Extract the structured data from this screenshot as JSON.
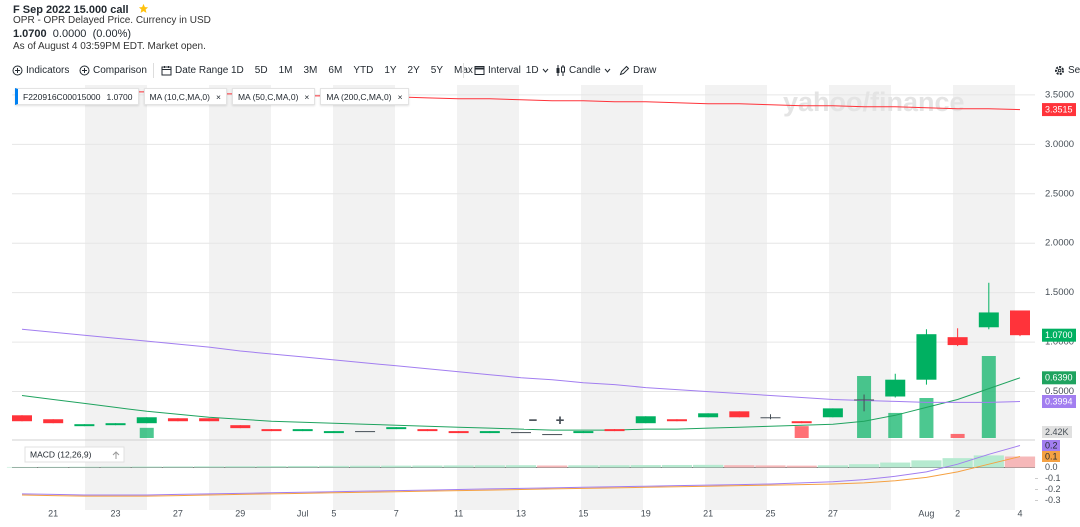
{
  "header": {
    "title": "F Sep 2022 15.000 call",
    "subtitle": "OPR - OPR Delayed Price. Currency in USD",
    "price": "1.0700",
    "change": "0.0000",
    "change_pct": "(0.00%)",
    "as_of": "As of August 4 03:59PM EDT. Market open."
  },
  "toolbar": {
    "indicators": "Indicators",
    "comparison": "Comparison",
    "date_range": "Date Range",
    "ranges": [
      "1D",
      "5D",
      "1M",
      "3M",
      "6M",
      "YTD",
      "1Y",
      "2Y",
      "5Y",
      "Max"
    ],
    "interval": "Interval",
    "interval_value": "1D",
    "chart_style": "Candle",
    "draw": "Draw",
    "settings": "Set"
  },
  "watermark": "yahoo/finance",
  "zoom_out": "−",
  "zoom_in": "+",
  "close_icon": "×",
  "chart_data": [
    {
      "type": "candlestick",
      "categories": [
        null,
        "21",
        null,
        "23",
        null,
        "27",
        null,
        "29",
        null,
        "Jul",
        "5",
        null,
        "7",
        null,
        "11",
        null,
        "13",
        null,
        "15",
        null,
        "19",
        null,
        "21",
        null,
        "25",
        null,
        "27",
        null,
        null,
        "Aug",
        "2",
        null,
        "4"
      ],
      "candles": {
        "name": "F220916C00015000",
        "tag": "1.0700",
        "up_color": "#00b061",
        "down_color": "#ff333a",
        "open": [
          0.26,
          0.22,
          0.15,
          0.16,
          0.18,
          0.23,
          0.23,
          0.16,
          0.12,
          0.1,
          0.08,
          0.1,
          0.12,
          0.12,
          0.1,
          0.08,
          0.09,
          0.07,
          0.08,
          0.12,
          0.18,
          0.22,
          0.24,
          0.3,
          0.24,
          0.2,
          0.24,
          0.42,
          0.45,
          0.62,
          1.05,
          1.15,
          1.32
        ],
        "high": [
          0.26,
          0.22,
          0.17,
          0.18,
          0.24,
          0.23,
          0.23,
          0.16,
          0.12,
          0.12,
          0.1,
          0.1,
          0.14,
          0.12,
          0.1,
          0.1,
          0.09,
          0.07,
          0.1,
          0.12,
          0.25,
          0.22,
          0.28,
          0.3,
          0.27,
          0.2,
          0.33,
          0.47,
          0.68,
          1.13,
          1.14,
          1.6,
          1.32
        ],
        "low": [
          0.2,
          0.18,
          0.15,
          0.16,
          0.18,
          0.2,
          0.2,
          0.13,
          0.1,
          0.1,
          0.08,
          0.1,
          0.12,
          0.1,
          0.08,
          0.08,
          0.09,
          0.07,
          0.08,
          0.1,
          0.18,
          0.2,
          0.24,
          0.24,
          0.22,
          0.18,
          0.24,
          0.3,
          0.44,
          0.57,
          0.96,
          1.13,
          1.06
        ],
        "close": [
          0.2,
          0.18,
          0.17,
          0.18,
          0.24,
          0.2,
          0.2,
          0.13,
          0.1,
          0.12,
          0.1,
          0.1,
          0.14,
          0.1,
          0.08,
          0.1,
          0.09,
          0.07,
          0.1,
          0.1,
          0.25,
          0.2,
          0.28,
          0.24,
          0.24,
          0.18,
          0.33,
          0.42,
          0.62,
          1.08,
          0.97,
          1.3,
          1.07
        ]
      },
      "volume": {
        "tag": "2.42K",
        "values": [
          0,
          0,
          0,
          0,
          300,
          0,
          0,
          0,
          0,
          0,
          0,
          0,
          0,
          0,
          0,
          0,
          0,
          0,
          0,
          0,
          0,
          0,
          0,
          0,
          0,
          350,
          0,
          1830,
          740,
          1180,
          120,
          2420,
          0
        ]
      },
      "lines": [
        {
          "name": "MA (10,C,MA,0)",
          "tag": "0.6390",
          "color": "#1fa35f",
          "values": [
            0.46,
            0.42,
            0.38,
            0.34,
            0.3,
            0.27,
            0.24,
            0.22,
            0.2,
            0.19,
            0.18,
            0.17,
            0.16,
            0.15,
            0.14,
            0.13,
            0.12,
            0.11,
            0.11,
            0.11,
            0.12,
            0.12,
            0.13,
            0.14,
            0.15,
            0.16,
            0.17,
            0.2,
            0.26,
            0.34,
            0.42,
            0.53,
            0.639
          ]
        },
        {
          "name": "MA (50,C,MA,0)",
          "tag": "0.3994",
          "color": "#a27ef0",
          "values": [
            1.13,
            1.1,
            1.07,
            1.04,
            1.01,
            0.98,
            0.95,
            0.91,
            0.88,
            0.85,
            0.82,
            0.79,
            0.76,
            0.73,
            0.7,
            0.67,
            0.64,
            0.62,
            0.59,
            0.57,
            0.54,
            0.52,
            0.5,
            0.48,
            0.46,
            0.44,
            0.42,
            0.41,
            0.4,
            0.39,
            0.39,
            0.39,
            0.3994
          ]
        },
        {
          "name": "MA (200,C,MA,0)",
          "tag": "3.3515",
          "color": "#ff333a",
          "values": [
            3.55,
            3.54,
            3.54,
            3.53,
            3.53,
            3.52,
            3.51,
            3.51,
            3.5,
            3.49,
            3.49,
            3.48,
            3.48,
            3.47,
            3.46,
            3.46,
            3.45,
            3.44,
            3.44,
            3.43,
            3.43,
            3.42,
            3.41,
            3.41,
            3.4,
            3.39,
            3.39,
            3.38,
            3.38,
            3.37,
            3.36,
            3.36,
            3.3515
          ]
        }
      ],
      "ylim": [
        0,
        3.6
      ],
      "yticks": [
        {
          "value": 0.5,
          "label": "0.5000"
        },
        {
          "value": 1,
          "label": "1.0000"
        },
        {
          "value": 1.5,
          "label": "1.5000"
        },
        {
          "value": 2,
          "label": "2.0000"
        },
        {
          "value": 2.5,
          "label": "2.5000"
        },
        {
          "value": 3,
          "label": "3.0000"
        },
        {
          "value": 3.5,
          "label": "3.5000"
        }
      ],
      "grid": true
    },
    {
      "type": "macd",
      "title": "MACD (12,26,9)",
      "histogram": [
        0.005,
        0.006,
        0.007,
        0.008,
        0.009,
        0.01,
        0.011,
        0.012,
        0.013,
        0.014,
        0.015,
        0.016,
        0.017,
        0.018,
        0.019,
        0.02,
        0.021,
        0.018,
        0.02,
        0.021,
        0.022,
        0.023,
        0.024,
        0.021,
        0.019,
        0.017,
        0.02,
        0.03,
        0.045,
        0.065,
        0.085,
        0.11,
        0.1
      ],
      "up_color": "#b6ead0",
      "down_color": "#f6b8b9",
      "series": [
        {
          "color": "#a27ef0",
          "values": [
            -0.24,
            -0.245,
            -0.25,
            -0.25,
            -0.25,
            -0.245,
            -0.24,
            -0.235,
            -0.23,
            -0.225,
            -0.22,
            -0.215,
            -0.21,
            -0.205,
            -0.2,
            -0.195,
            -0.19,
            -0.185,
            -0.18,
            -0.175,
            -0.17,
            -0.165,
            -0.16,
            -0.155,
            -0.15,
            -0.14,
            -0.13,
            -0.11,
            -0.08,
            -0.04,
            0.03,
            0.12,
            0.2
          ]
        },
        {
          "color": "#f5a142",
          "values": [
            -0.25,
            -0.255,
            -0.26,
            -0.26,
            -0.26,
            -0.255,
            -0.25,
            -0.245,
            -0.24,
            -0.235,
            -0.23,
            -0.225,
            -0.22,
            -0.215,
            -0.21,
            -0.205,
            -0.2,
            -0.195,
            -0.19,
            -0.185,
            -0.18,
            -0.175,
            -0.17,
            -0.165,
            -0.16,
            -0.155,
            -0.15,
            -0.14,
            -0.12,
            -0.09,
            -0.04,
            0.03,
            0.1
          ]
        }
      ],
      "ylim": [
        -0.35,
        0.25
      ],
      "yticks": [
        {
          "value": 0,
          "label": "0.0"
        },
        -0.1,
        -0.2,
        -0.3
      ]
    }
  ]
}
